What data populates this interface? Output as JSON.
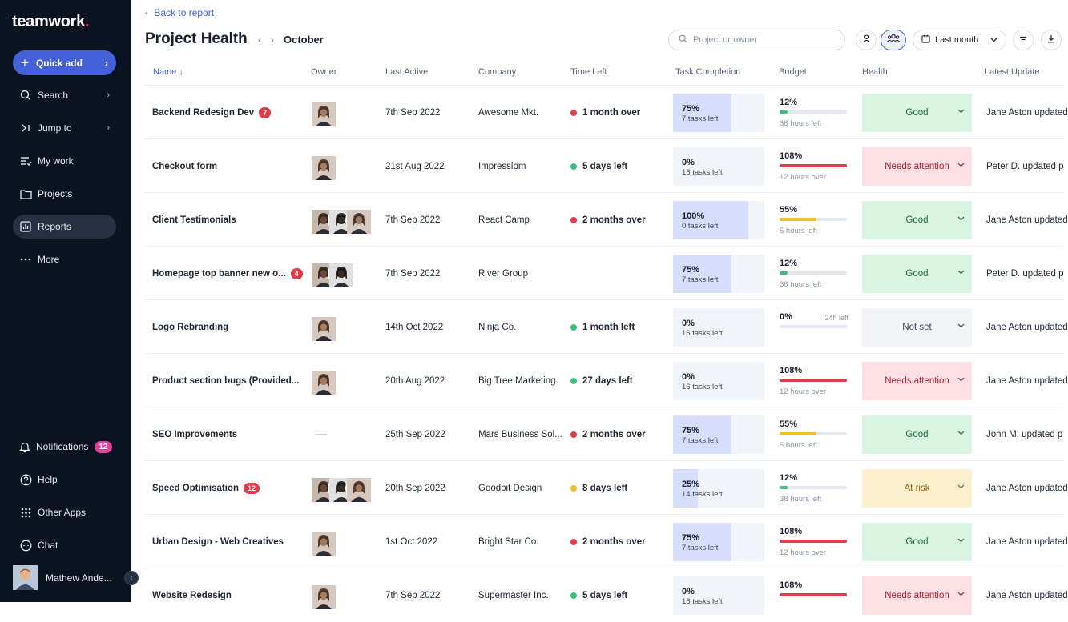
{
  "sidebar": {
    "logo": "teamwork",
    "logo_dot": ".",
    "quick_add": "Quick add",
    "items": [
      {
        "label": "Search",
        "icon": "search-icon"
      },
      {
        "label": "Jump to",
        "icon": "jump-icon"
      },
      {
        "label": "My work",
        "icon": "list-icon"
      },
      {
        "label": "Projects",
        "icon": "folder-icon"
      },
      {
        "label": "Reports",
        "icon": "chart-icon"
      },
      {
        "label": "More",
        "icon": "more-icon"
      }
    ],
    "bottom_items": [
      {
        "label": "Notifications",
        "badge": "12",
        "icon": "bell-icon"
      },
      {
        "label": "Help",
        "icon": "help-icon"
      },
      {
        "label": "Other Apps",
        "icon": "grid-icon"
      },
      {
        "label": "Chat",
        "icon": "chat-icon"
      }
    ],
    "user_name": "Mathew Ande..."
  },
  "header": {
    "back": "Back to report",
    "title": "Project Health",
    "month": "October",
    "search_placeholder": "Project or owner",
    "date_range": "Last month"
  },
  "columns": {
    "name": "Name",
    "owner": "Owner",
    "last_active": "Last Active",
    "company": "Company",
    "time_left": "Time Left",
    "task_completion": "Task Completion",
    "budget": "Budget",
    "health": "Health",
    "latest_update": "Latest Update"
  },
  "colors": {
    "accent": "#4461d7",
    "red": "#e23b4a",
    "green": "#3fbf7f",
    "yellow": "#f2bd2c"
  },
  "rows": [
    {
      "name": "Backend Redesign Dev",
      "count": "7",
      "owners": 1,
      "last_active": "7th Sep 2022",
      "company": "Awesome Mkt.",
      "time_left": "1 month over",
      "time_status": "red",
      "task_pct": "75%",
      "task_value": 0.75,
      "tasks_left": "7 tasks left",
      "budget_pct": "12%",
      "budget_value": 0.12,
      "budget_color": "green",
      "budget_extra": "",
      "budget_sub": "38 hours left",
      "health": "Good",
      "health_type": "good",
      "latest": "Jane Aston updated"
    },
    {
      "name": "Checkout form",
      "count": "",
      "owners": 1,
      "last_active": "21st Aug 2022",
      "company": "Impressiom",
      "time_left": "5 days left",
      "time_status": "green",
      "task_pct": "0%",
      "task_value": 0,
      "tasks_left": "16 tasks left",
      "budget_pct": "108%",
      "budget_value": 1,
      "budget_color": "red",
      "budget_extra": "",
      "budget_sub": "12 hours over",
      "health": "Needs attention",
      "health_type": "att",
      "latest": "Peter D. updated p"
    },
    {
      "name": "Client Testimonials",
      "count": "",
      "owners": 3,
      "last_active": "7th Sep 2022",
      "company": "React Camp",
      "time_left": "2 months over",
      "time_status": "red",
      "task_pct": "100%",
      "task_value": 1,
      "tasks_left": "0 tasks left",
      "budget_pct": "55%",
      "budget_value": 0.55,
      "budget_color": "yellow",
      "budget_extra": "",
      "budget_sub": "5 hours left",
      "health": "Good",
      "health_type": "good",
      "latest": "Jane Aston updated"
    },
    {
      "name": "Homepage top banner new o...",
      "count": "4",
      "owners": 2,
      "last_active": "7th Sep 2022",
      "company": "River Group",
      "time_left": "",
      "time_status": "",
      "task_pct": "75%",
      "task_value": 0.75,
      "tasks_left": "7 tasks left",
      "budget_pct": "12%",
      "budget_value": 0.12,
      "budget_color": "green",
      "budget_extra": "",
      "budget_sub": "38 hours left",
      "health": "Good",
      "health_type": "good",
      "latest": "Peter D. updated p"
    },
    {
      "name": "Logo Rebranding",
      "count": "",
      "owners": 1,
      "last_active": "14th Oct 2022",
      "company": "Ninja Co.",
      "time_left": "1 month left",
      "time_status": "green",
      "task_pct": "0%",
      "task_value": 0,
      "tasks_left": "16 tasks left",
      "budget_pct": "0%",
      "budget_value": 0,
      "budget_color": "green",
      "budget_extra": "24h left",
      "budget_sub": "",
      "health": "Not set",
      "health_type": "none",
      "latest": "Jane Aston updated"
    },
    {
      "name": "Product section bugs (Provided...",
      "count": "",
      "owners": 1,
      "last_active": "20th Aug 2022",
      "company": "Big Tree Marketing",
      "time_left": "27 days left",
      "time_status": "green",
      "task_pct": "0%",
      "task_value": 0,
      "tasks_left": "16 tasks left",
      "budget_pct": "108%",
      "budget_value": 1,
      "budget_color": "red",
      "budget_extra": "",
      "budget_sub": "12 hours over",
      "health": "Needs attention",
      "health_type": "att",
      "latest": "Jane Aston updated"
    },
    {
      "name": "SEO Improvements",
      "count": "",
      "owners": 0,
      "last_active": "25th Sep 2022",
      "company": "Mars Business Sol...",
      "time_left": "2 months over",
      "time_status": "red",
      "task_pct": "75%",
      "task_value": 0.75,
      "tasks_left": "7 tasks left",
      "budget_pct": "55%",
      "budget_value": 0.55,
      "budget_color": "yellow",
      "budget_extra": "",
      "budget_sub": "5 hours left",
      "health": "Good",
      "health_type": "good",
      "latest": "John M. updated p"
    },
    {
      "name": "Speed Optimisation",
      "count": "12",
      "owners": 3,
      "last_active": "20th Sep 2022",
      "company": "Goodbit Design",
      "time_left": "8 days left",
      "time_status": "yellow",
      "task_pct": "25%",
      "task_value": 0.25,
      "tasks_left": "14 tasks left",
      "budget_pct": "12%",
      "budget_value": 0.12,
      "budget_color": "green",
      "budget_extra": "",
      "budget_sub": "38 hours left",
      "health": "At risk",
      "health_type": "risk",
      "latest": "Jane Aston updated"
    },
    {
      "name": "Urban Design - Web Creatives",
      "count": "",
      "owners": 1,
      "last_active": "1st Oct 2022",
      "company": "Bright Star Co.",
      "time_left": "2 months over",
      "time_status": "red",
      "task_pct": "75%",
      "task_value": 0.75,
      "tasks_left": "7 tasks left",
      "budget_pct": "108%",
      "budget_value": 1,
      "budget_color": "red",
      "budget_extra": "",
      "budget_sub": "12 hours over",
      "health": "Good",
      "health_type": "good",
      "latest": "Jane Aston updated"
    },
    {
      "name": "Website Redesign",
      "count": "",
      "owners": 1,
      "last_active": "7th Sep 2022",
      "company": "Supermaster Inc.",
      "time_left": "5 days left",
      "time_status": "green",
      "task_pct": "0%",
      "task_value": 0,
      "tasks_left": "16 tasks left",
      "budget_pct": "108%",
      "budget_value": 1,
      "budget_color": "red",
      "budget_extra": "",
      "budget_sub": "",
      "health": "Needs attention",
      "health_type": "att",
      "latest": "Jane Aston updated"
    }
  ]
}
